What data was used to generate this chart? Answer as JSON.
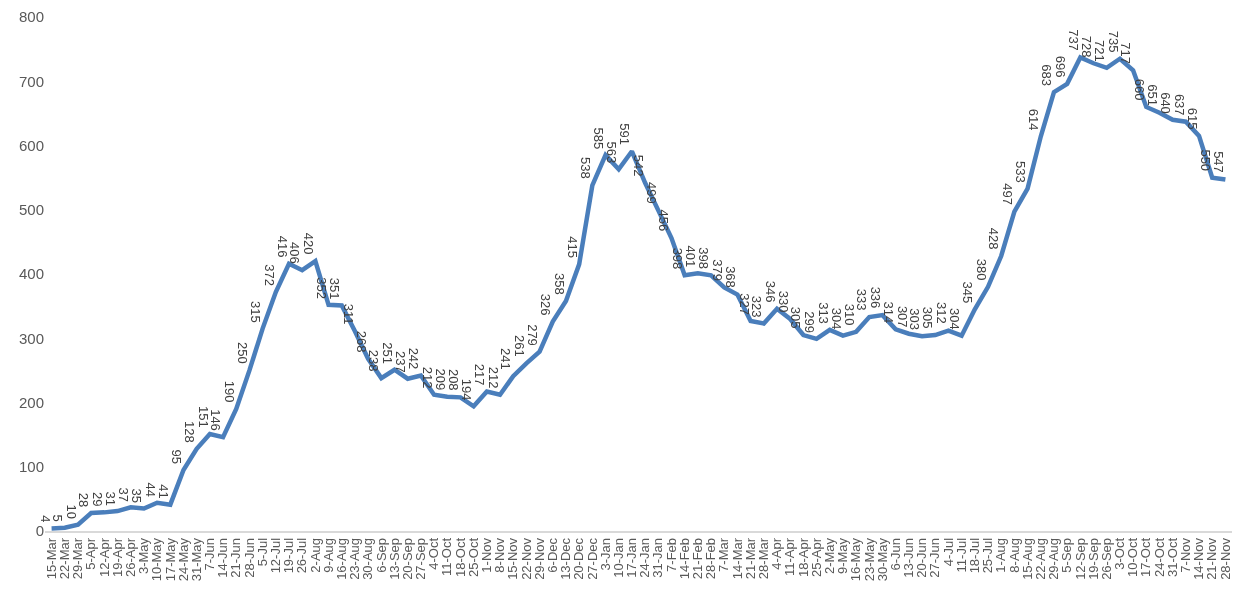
{
  "chart_data": {
    "type": "line",
    "categories": [
      "15-Mar",
      "22-Mar",
      "29-Mar",
      "5-Apr",
      "12-Apr",
      "19-Apr",
      "26-Apr",
      "3-May",
      "10-May",
      "17-May",
      "24-May",
      "31-May",
      "7-Jun",
      "14-Jun",
      "21-Jun",
      "28-Jun",
      "5-Jul",
      "12-Jul",
      "19-Jul",
      "26-Jul",
      "2-Aug",
      "9-Aug",
      "16-Aug",
      "23-Aug",
      "30-Aug",
      "6-Sep",
      "13-Sep",
      "20-Sep",
      "27-Sep",
      "4-Oct",
      "11-Oct",
      "18-Oct",
      "25-Oct",
      "1-Nov",
      "8-Nov",
      "15-Nov",
      "22-Nov",
      "29-Nov",
      "6-Dec",
      "13-Dec",
      "20-Dec",
      "27-Dec",
      "3-Jan",
      "10-Jan",
      "17-Jan",
      "24-Jan",
      "31-Jan",
      "7-Feb",
      "14-Feb",
      "21-Feb",
      "28-Feb",
      "7-Mar",
      "14-Mar",
      "21-Mar",
      "28-Mar",
      "4-Apr",
      "11-Apr",
      "18-Apr",
      "25-Apr",
      "2-May",
      "9-May",
      "16-May",
      "23-May",
      "30-May",
      "6-Jun",
      "13-Jun",
      "20-Jun",
      "27-Jun",
      "4-Jul",
      "11-Jul",
      "18-Jul",
      "25-Jul",
      "1-Aug",
      "8-Aug",
      "15-Aug",
      "22-Aug",
      "29-Aug",
      "5-Sep",
      "12-Sep",
      "19-Sep",
      "26-Sep",
      "3-Oct",
      "10-Oct",
      "17-Oct",
      "24-Oct",
      "31-Oct",
      "7-Nov",
      "14-Nov",
      "21-Nov",
      "28-Nov"
    ],
    "series": [
      {
        "color": "#4a7ebb",
        "values": [
          4,
          5,
          10,
          28,
          29,
          31,
          37,
          35,
          44,
          41,
          95,
          128,
          151,
          146,
          190,
          250,
          315,
          372,
          416,
          406,
          420,
          352,
          351,
          311,
          268,
          238,
          251,
          237,
          242,
          212,
          209,
          208,
          194,
          217,
          212,
          241,
          261,
          279,
          326,
          358,
          415,
          538,
          585,
          563,
          591,
          542,
          499,
          456,
          398,
          401,
          398,
          379,
          368,
          327,
          323,
          346,
          330,
          305,
          299,
          313,
          304,
          310,
          333,
          336,
          314,
          307,
          303,
          305,
          312,
          304,
          345,
          380,
          428,
          497,
          533,
          614,
          683,
          696,
          737,
          728,
          721,
          735,
          717,
          660,
          651,
          640,
          637,
          615,
          550,
          547
        ]
      }
    ],
    "ylim": [
      0,
      800
    ],
    "yticks": [
      0,
      100,
      200,
      300,
      400,
      500,
      600,
      700,
      800
    ],
    "data_labels": true,
    "grid": false,
    "marker": "none",
    "line_style": "solid"
  }
}
